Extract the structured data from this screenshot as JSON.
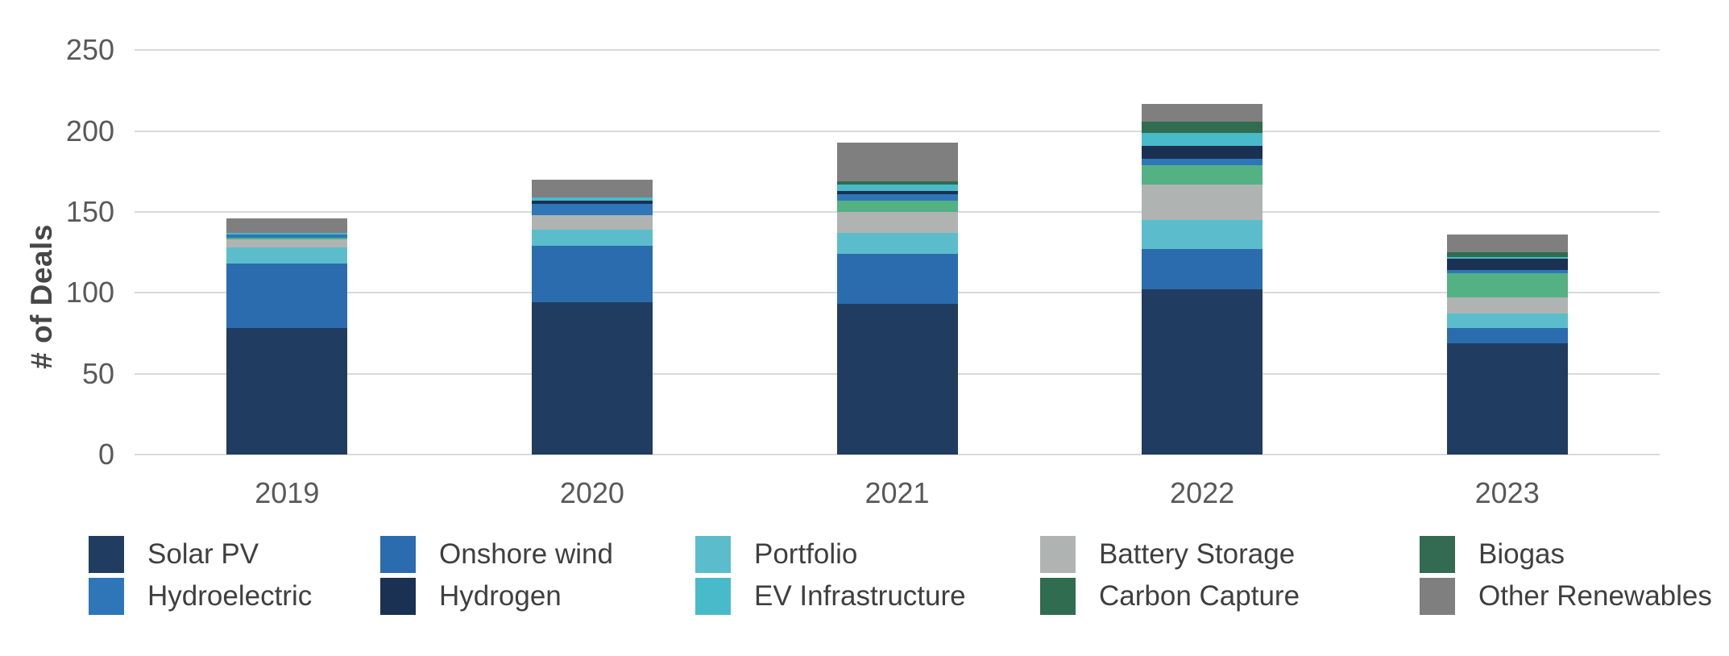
{
  "chart_data": {
    "type": "bar",
    "variant": "stacked-column",
    "title": "",
    "xlabel": "",
    "ylabel": "# of Deals",
    "categories": [
      "2019",
      "2020",
      "2021",
      "2022",
      "2023"
    ],
    "y_ticks": [
      0,
      50,
      100,
      150,
      200,
      250
    ],
    "ylim": [
      0,
      250
    ],
    "grid": "horizontal",
    "legend_position": "bottom",
    "legend_rows": [
      [
        "Solar PV",
        "Onshore wind",
        "Portfolio",
        "Battery Storage",
        "Biogas"
      ],
      [
        "Hydroelectric",
        "Hydrogen",
        "EV Infrastructure",
        "Carbon Capture",
        "Other Renewables"
      ]
    ],
    "series": [
      {
        "name": "Solar PV",
        "color": "#203D61",
        "values": [
          78,
          94,
          93,
          102,
          69
        ]
      },
      {
        "name": "Onshore wind",
        "color": "#2B6CAE",
        "values": [
          40,
          35,
          31,
          25,
          9
        ]
      },
      {
        "name": "Portfolio",
        "color": "#5BBDCB",
        "values": [
          10,
          10,
          13,
          18,
          9
        ]
      },
      {
        "name": "Battery Storage",
        "color": "#AFB4B3",
        "values": [
          5,
          9,
          13,
          22,
          10
        ]
      },
      {
        "name": "Biogas",
        "color": "#53B184",
        "legend_color": "#336B52",
        "values": [
          1,
          0,
          7,
          12,
          15
        ]
      },
      {
        "name": "Hydroelectric",
        "color": "#2E76B7",
        "values": [
          2,
          7,
          4,
          4,
          2
        ]
      },
      {
        "name": "Hydrogen",
        "color": "#1B3153",
        "values": [
          0,
          2,
          2,
          8,
          7
        ]
      },
      {
        "name": "EV Infrastructure",
        "color": "#49BAC9",
        "values": [
          1,
          2,
          4,
          8,
          1
        ]
      },
      {
        "name": "Carbon Capture",
        "color": "#2F6C50",
        "values": [
          0,
          0,
          2,
          7,
          3
        ]
      },
      {
        "name": "Other Renewables",
        "color": "#7F7F7F",
        "values": [
          9,
          11,
          24,
          11,
          11
        ]
      }
    ],
    "totals": [
      146,
      170,
      193,
      217,
      136
    ],
    "colors": {
      "gridline": "#d9d9d9",
      "axis_text": "#595959",
      "legend_text": "#3f3f3f"
    }
  }
}
